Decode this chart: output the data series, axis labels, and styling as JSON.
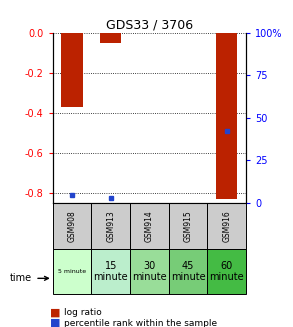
{
  "title": "GDS33 / 3706",
  "samples": [
    "GSM908",
    "GSM913",
    "GSM914",
    "GSM915",
    "GSM916"
  ],
  "time_labels": [
    "5 minute",
    "15\nminute",
    "30\nminute",
    "45\nminute",
    "60\nminute"
  ],
  "time_colors": [
    "#ccffcc",
    "#bbeecc",
    "#99dd99",
    "#77cc77",
    "#44bb44"
  ],
  "log_ratio": [
    -0.37,
    -0.05,
    0.0,
    0.0,
    -0.83
  ],
  "percentile_rank": [
    5.0,
    3.0,
    0.0,
    0.0,
    42.0
  ],
  "ylim_left": [
    -0.85,
    0.0
  ],
  "ylim_right": [
    0,
    100
  ],
  "yticks_left": [
    0.0,
    -0.2,
    -0.4,
    -0.6,
    -0.8
  ],
  "yticks_right": [
    0,
    25,
    50,
    75,
    100
  ],
  "bar_color_red": "#bb2200",
  "bar_color_blue": "#2244cc",
  "sample_bg": "#cccccc",
  "bar_width": 0.55
}
